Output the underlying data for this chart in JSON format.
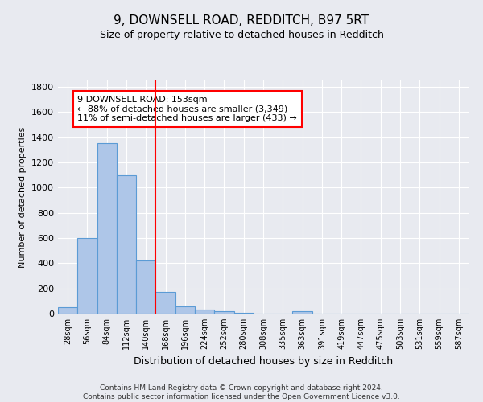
{
  "title": "9, DOWNSELL ROAD, REDDITCH, B97 5RT",
  "subtitle": "Size of property relative to detached houses in Redditch",
  "xlabel": "Distribution of detached houses by size in Redditch",
  "ylabel": "Number of detached properties",
  "footer_line1": "Contains HM Land Registry data © Crown copyright and database right 2024.",
  "footer_line2": "Contains public sector information licensed under the Open Government Licence v3.0.",
  "categories": [
    "28sqm",
    "56sqm",
    "84sqm",
    "112sqm",
    "140sqm",
    "168sqm",
    "196sqm",
    "224sqm",
    "252sqm",
    "280sqm",
    "308sqm",
    "335sqm",
    "363sqm",
    "391sqm",
    "419sqm",
    "447sqm",
    "475sqm",
    "503sqm",
    "531sqm",
    "559sqm",
    "587sqm"
  ],
  "values": [
    50,
    600,
    1350,
    1100,
    420,
    175,
    60,
    35,
    20,
    5,
    0,
    0,
    18,
    0,
    0,
    0,
    0,
    0,
    0,
    0,
    0
  ],
  "bar_color": "#aec6e8",
  "bar_edge_color": "#5b9bd5",
  "vline_x": 4.5,
  "vline_color": "red",
  "annotation_text": "9 DOWNSELL ROAD: 153sqm\n← 88% of detached houses are smaller (3,349)\n11% of semi-detached houses are larger (433) →",
  "annotation_box_color": "white",
  "annotation_box_edge_color": "red",
  "ylim": [
    0,
    1850
  ],
  "yticks": [
    0,
    200,
    400,
    600,
    800,
    1000,
    1200,
    1400,
    1600,
    1800
  ],
  "background_color": "#e8eaf0",
  "grid_color": "white",
  "title_fontsize": 11,
  "subtitle_fontsize": 9,
  "ylabel_fontsize": 8,
  "xlabel_fontsize": 9,
  "tick_fontsize": 8,
  "footer_fontsize": 6.5
}
